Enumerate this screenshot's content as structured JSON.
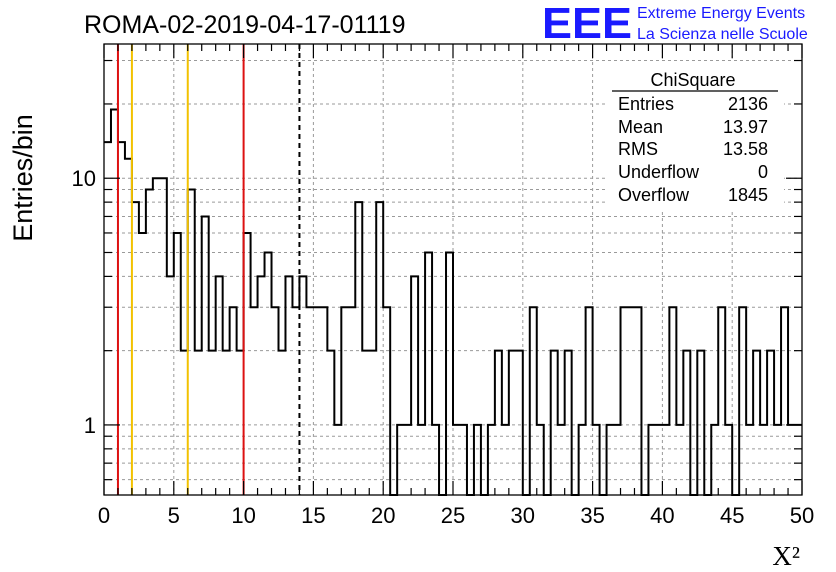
{
  "chart_data": {
    "type": "histogram",
    "title": "ROMA-02-2019-04-17-01119",
    "xlabel": "X²",
    "ylabel": "Entries/bin",
    "x_range": [
      0,
      50
    ],
    "y_range": [
      0.52,
      35
    ],
    "y_scale": "log",
    "grid": true,
    "bin_width": 0.5,
    "x_tick_labels": [
      "0",
      "5",
      "10",
      "15",
      "20",
      "25",
      "30",
      "35",
      "40",
      "45",
      "50"
    ],
    "y_tick_labels": [
      "1",
      "10"
    ],
    "y_tick_values": [
      1,
      10
    ],
    "counts": [
      14,
      19,
      14,
      12,
      8,
      6,
      9,
      10,
      10,
      4,
      6,
      2,
      9,
      2,
      7,
      2,
      4,
      2,
      3,
      2,
      6,
      3,
      4,
      5,
      3,
      2,
      4,
      3,
      4,
      3,
      3,
      3,
      2,
      1,
      3,
      3,
      8,
      2,
      2,
      8,
      3,
      0.5,
      1,
      1,
      4,
      1,
      5,
      1,
      0,
      5,
      1,
      1,
      0.5,
      1,
      0.5,
      1,
      2,
      1,
      2,
      2,
      0.5,
      3,
      1,
      0.5,
      2,
      1,
      2,
      0.5,
      1,
      3,
      1,
      0.5,
      1,
      1,
      3,
      3,
      3,
      0.5,
      1,
      1,
      1,
      3,
      1,
      2,
      0.5,
      2,
      0.5,
      1,
      3,
      1,
      0.5,
      3,
      1,
      2,
      1,
      2,
      1,
      3,
      1,
      1
    ],
    "vertical_lines": [
      {
        "x": 1,
        "color": "#dd1111",
        "style": "solid"
      },
      {
        "x": 2,
        "color": "#f2c200",
        "style": "solid"
      },
      {
        "x": 6,
        "color": "#f2c200",
        "style": "solid"
      },
      {
        "x": 10,
        "color": "#dd1111",
        "style": "solid"
      },
      {
        "x": 14,
        "color": "#000000",
        "style": "dashed"
      }
    ],
    "stats": {
      "title": "ChiSquare",
      "rows": [
        {
          "label": "Entries",
          "value": "2136"
        },
        {
          "label": "Mean",
          "value": "13.97"
        },
        {
          "label": "RMS",
          "value": "13.58"
        },
        {
          "label": "Underflow",
          "value": "0"
        },
        {
          "label": "Overflow",
          "value": "1845"
        }
      ]
    }
  },
  "logo": {
    "mark": "EEE",
    "line1": "Extreme Energy Events",
    "line2": "La Scienza nelle Scuole",
    "color": "#1a1aff"
  }
}
